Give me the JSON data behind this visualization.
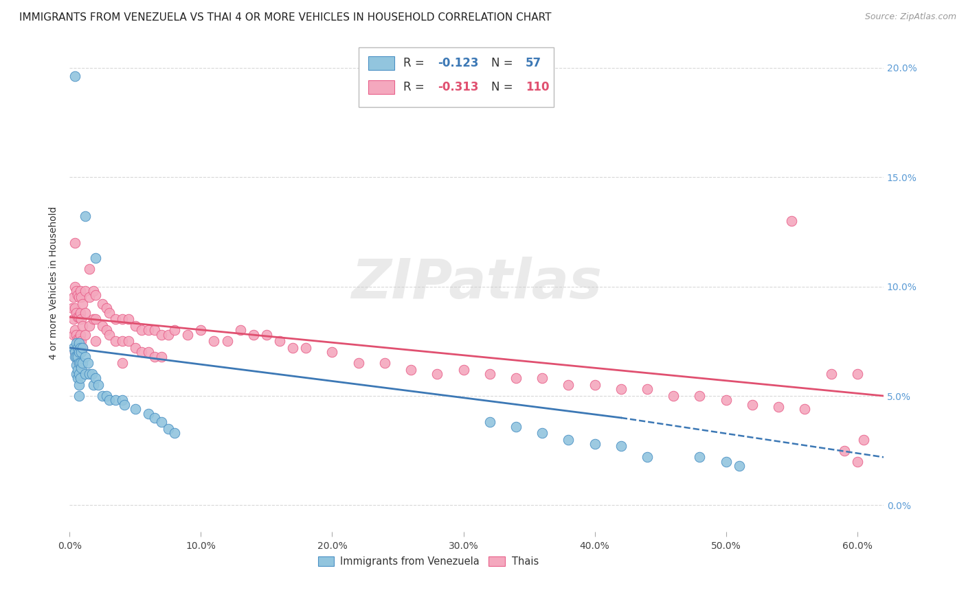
{
  "title": "IMMIGRANTS FROM VENEZUELA VS THAI 4 OR MORE VEHICLES IN HOUSEHOLD CORRELATION CHART",
  "source": "Source: ZipAtlas.com",
  "ylabel": "4 or more Vehicles in Household",
  "xlim": [
    0.0,
    0.62
  ],
  "ylim": [
    -0.012,
    0.215
  ],
  "xticks": [
    0.0,
    0.1,
    0.2,
    0.3,
    0.4,
    0.5,
    0.6
  ],
  "xticklabels": [
    "0.0%",
    "10.0%",
    "20.0%",
    "30.0%",
    "40.0%",
    "50.0%",
    "60.0%"
  ],
  "yticks": [
    0.0,
    0.05,
    0.1,
    0.15,
    0.2
  ],
  "yticklabels": [
    "0.0%",
    "5.0%",
    "10.0%",
    "15.0%",
    "20.0%"
  ],
  "blue_color": "#92c5de",
  "pink_color": "#f4a8be",
  "blue_edge_color": "#4a90c4",
  "pink_edge_color": "#e8608a",
  "blue_line_color": "#3c78b5",
  "pink_line_color": "#e05070",
  "blue_scatter": [
    [
      0.004,
      0.196
    ],
    [
      0.012,
      0.132
    ],
    [
      0.02,
      0.113
    ],
    [
      0.003,
      0.072
    ],
    [
      0.004,
      0.07
    ],
    [
      0.004,
      0.068
    ],
    [
      0.005,
      0.074
    ],
    [
      0.005,
      0.068
    ],
    [
      0.005,
      0.064
    ],
    [
      0.005,
      0.06
    ],
    [
      0.006,
      0.072
    ],
    [
      0.006,
      0.068
    ],
    [
      0.006,
      0.062
    ],
    [
      0.006,
      0.058
    ],
    [
      0.007,
      0.074
    ],
    [
      0.007,
      0.07
    ],
    [
      0.007,
      0.065
    ],
    [
      0.007,
      0.06
    ],
    [
      0.007,
      0.055
    ],
    [
      0.007,
      0.05
    ],
    [
      0.008,
      0.072
    ],
    [
      0.008,
      0.065
    ],
    [
      0.008,
      0.058
    ],
    [
      0.009,
      0.07
    ],
    [
      0.009,
      0.063
    ],
    [
      0.01,
      0.072
    ],
    [
      0.01,
      0.065
    ],
    [
      0.012,
      0.068
    ],
    [
      0.012,
      0.06
    ],
    [
      0.014,
      0.065
    ],
    [
      0.015,
      0.06
    ],
    [
      0.017,
      0.06
    ],
    [
      0.018,
      0.055
    ],
    [
      0.02,
      0.058
    ],
    [
      0.022,
      0.055
    ],
    [
      0.025,
      0.05
    ],
    [
      0.028,
      0.05
    ],
    [
      0.03,
      0.048
    ],
    [
      0.035,
      0.048
    ],
    [
      0.04,
      0.048
    ],
    [
      0.042,
      0.046
    ],
    [
      0.05,
      0.044
    ],
    [
      0.06,
      0.042
    ],
    [
      0.065,
      0.04
    ],
    [
      0.07,
      0.038
    ],
    [
      0.075,
      0.035
    ],
    [
      0.08,
      0.033
    ],
    [
      0.32,
      0.038
    ],
    [
      0.34,
      0.036
    ],
    [
      0.36,
      0.033
    ],
    [
      0.38,
      0.03
    ],
    [
      0.4,
      0.028
    ],
    [
      0.42,
      0.027
    ],
    [
      0.44,
      0.022
    ],
    [
      0.48,
      0.022
    ],
    [
      0.5,
      0.02
    ],
    [
      0.51,
      0.018
    ]
  ],
  "pink_scatter": [
    [
      0.002,
      0.09
    ],
    [
      0.003,
      0.095
    ],
    [
      0.003,
      0.085
    ],
    [
      0.003,
      0.078
    ],
    [
      0.004,
      0.12
    ],
    [
      0.004,
      0.1
    ],
    [
      0.004,
      0.09
    ],
    [
      0.004,
      0.08
    ],
    [
      0.004,
      0.07
    ],
    [
      0.005,
      0.098
    ],
    [
      0.005,
      0.088
    ],
    [
      0.005,
      0.078
    ],
    [
      0.005,
      0.068
    ],
    [
      0.006,
      0.096
    ],
    [
      0.006,
      0.086
    ],
    [
      0.006,
      0.076
    ],
    [
      0.006,
      0.066
    ],
    [
      0.007,
      0.095
    ],
    [
      0.007,
      0.086
    ],
    [
      0.007,
      0.076
    ],
    [
      0.008,
      0.098
    ],
    [
      0.008,
      0.088
    ],
    [
      0.008,
      0.078
    ],
    [
      0.009,
      0.095
    ],
    [
      0.009,
      0.085
    ],
    [
      0.009,
      0.075
    ],
    [
      0.01,
      0.092
    ],
    [
      0.01,
      0.082
    ],
    [
      0.01,
      0.072
    ],
    [
      0.012,
      0.098
    ],
    [
      0.012,
      0.088
    ],
    [
      0.012,
      0.078
    ],
    [
      0.015,
      0.108
    ],
    [
      0.015,
      0.095
    ],
    [
      0.015,
      0.082
    ],
    [
      0.018,
      0.098
    ],
    [
      0.018,
      0.085
    ],
    [
      0.02,
      0.096
    ],
    [
      0.02,
      0.085
    ],
    [
      0.02,
      0.075
    ],
    [
      0.025,
      0.092
    ],
    [
      0.025,
      0.082
    ],
    [
      0.028,
      0.09
    ],
    [
      0.028,
      0.08
    ],
    [
      0.03,
      0.088
    ],
    [
      0.03,
      0.078
    ],
    [
      0.035,
      0.085
    ],
    [
      0.035,
      0.075
    ],
    [
      0.04,
      0.085
    ],
    [
      0.04,
      0.075
    ],
    [
      0.04,
      0.065
    ],
    [
      0.045,
      0.085
    ],
    [
      0.045,
      0.075
    ],
    [
      0.05,
      0.082
    ],
    [
      0.05,
      0.072
    ],
    [
      0.055,
      0.08
    ],
    [
      0.055,
      0.07
    ],
    [
      0.06,
      0.08
    ],
    [
      0.06,
      0.07
    ],
    [
      0.065,
      0.08
    ],
    [
      0.065,
      0.068
    ],
    [
      0.07,
      0.078
    ],
    [
      0.07,
      0.068
    ],
    [
      0.075,
      0.078
    ],
    [
      0.08,
      0.08
    ],
    [
      0.09,
      0.078
    ],
    [
      0.1,
      0.08
    ],
    [
      0.11,
      0.075
    ],
    [
      0.12,
      0.075
    ],
    [
      0.13,
      0.08
    ],
    [
      0.14,
      0.078
    ],
    [
      0.15,
      0.078
    ],
    [
      0.16,
      0.075
    ],
    [
      0.17,
      0.072
    ],
    [
      0.18,
      0.072
    ],
    [
      0.2,
      0.07
    ],
    [
      0.22,
      0.065
    ],
    [
      0.24,
      0.065
    ],
    [
      0.26,
      0.062
    ],
    [
      0.28,
      0.06
    ],
    [
      0.3,
      0.062
    ],
    [
      0.32,
      0.06
    ],
    [
      0.34,
      0.058
    ],
    [
      0.36,
      0.058
    ],
    [
      0.38,
      0.055
    ],
    [
      0.4,
      0.055
    ],
    [
      0.42,
      0.053
    ],
    [
      0.44,
      0.053
    ],
    [
      0.46,
      0.05
    ],
    [
      0.48,
      0.05
    ],
    [
      0.5,
      0.048
    ],
    [
      0.52,
      0.046
    ],
    [
      0.54,
      0.045
    ],
    [
      0.55,
      0.13
    ],
    [
      0.56,
      0.044
    ],
    [
      0.58,
      0.06
    ],
    [
      0.59,
      0.025
    ],
    [
      0.6,
      0.06
    ],
    [
      0.605,
      0.03
    ],
    [
      0.6,
      0.02
    ]
  ],
  "blue_trend": {
    "x_start": 0.0,
    "x_end": 0.42,
    "y_start": 0.072,
    "y_end": 0.04
  },
  "blue_trend_dash": {
    "x_start": 0.42,
    "x_end": 0.62,
    "y_start": 0.04,
    "y_end": 0.022
  },
  "pink_trend": {
    "x_start": 0.0,
    "x_end": 0.62,
    "y_start": 0.086,
    "y_end": 0.05
  },
  "background_color": "#ffffff",
  "watermark": "ZIPatlas",
  "title_fontsize": 11,
  "axis_label_fontsize": 10,
  "tick_fontsize": 10,
  "right_tick_color": "#5b9bd5",
  "grid_color": "#d8d8d8"
}
